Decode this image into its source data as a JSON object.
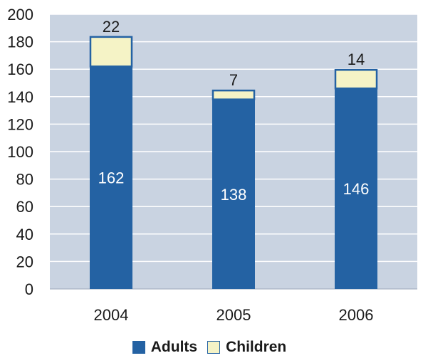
{
  "chart_data": {
    "type": "bar",
    "stacked": true,
    "categories": [
      "2004",
      "2005",
      "2006"
    ],
    "series": [
      {
        "name": "Adults",
        "values": [
          162,
          138,
          146
        ],
        "color": "#2462a3"
      },
      {
        "name": "Children",
        "values": [
          22,
          7,
          14
        ],
        "color": "#f5f3c6"
      }
    ],
    "title": "",
    "xlabel": "",
    "ylabel": "",
    "ylim": [
      0,
      200
    ],
    "yticks": [
      "0",
      "20",
      "40",
      "60",
      "80",
      "100",
      "120",
      "140",
      "160",
      "180",
      "200"
    ],
    "grid": true,
    "plot_background": "#c9d3e1",
    "legend_position": "bottom-center"
  }
}
